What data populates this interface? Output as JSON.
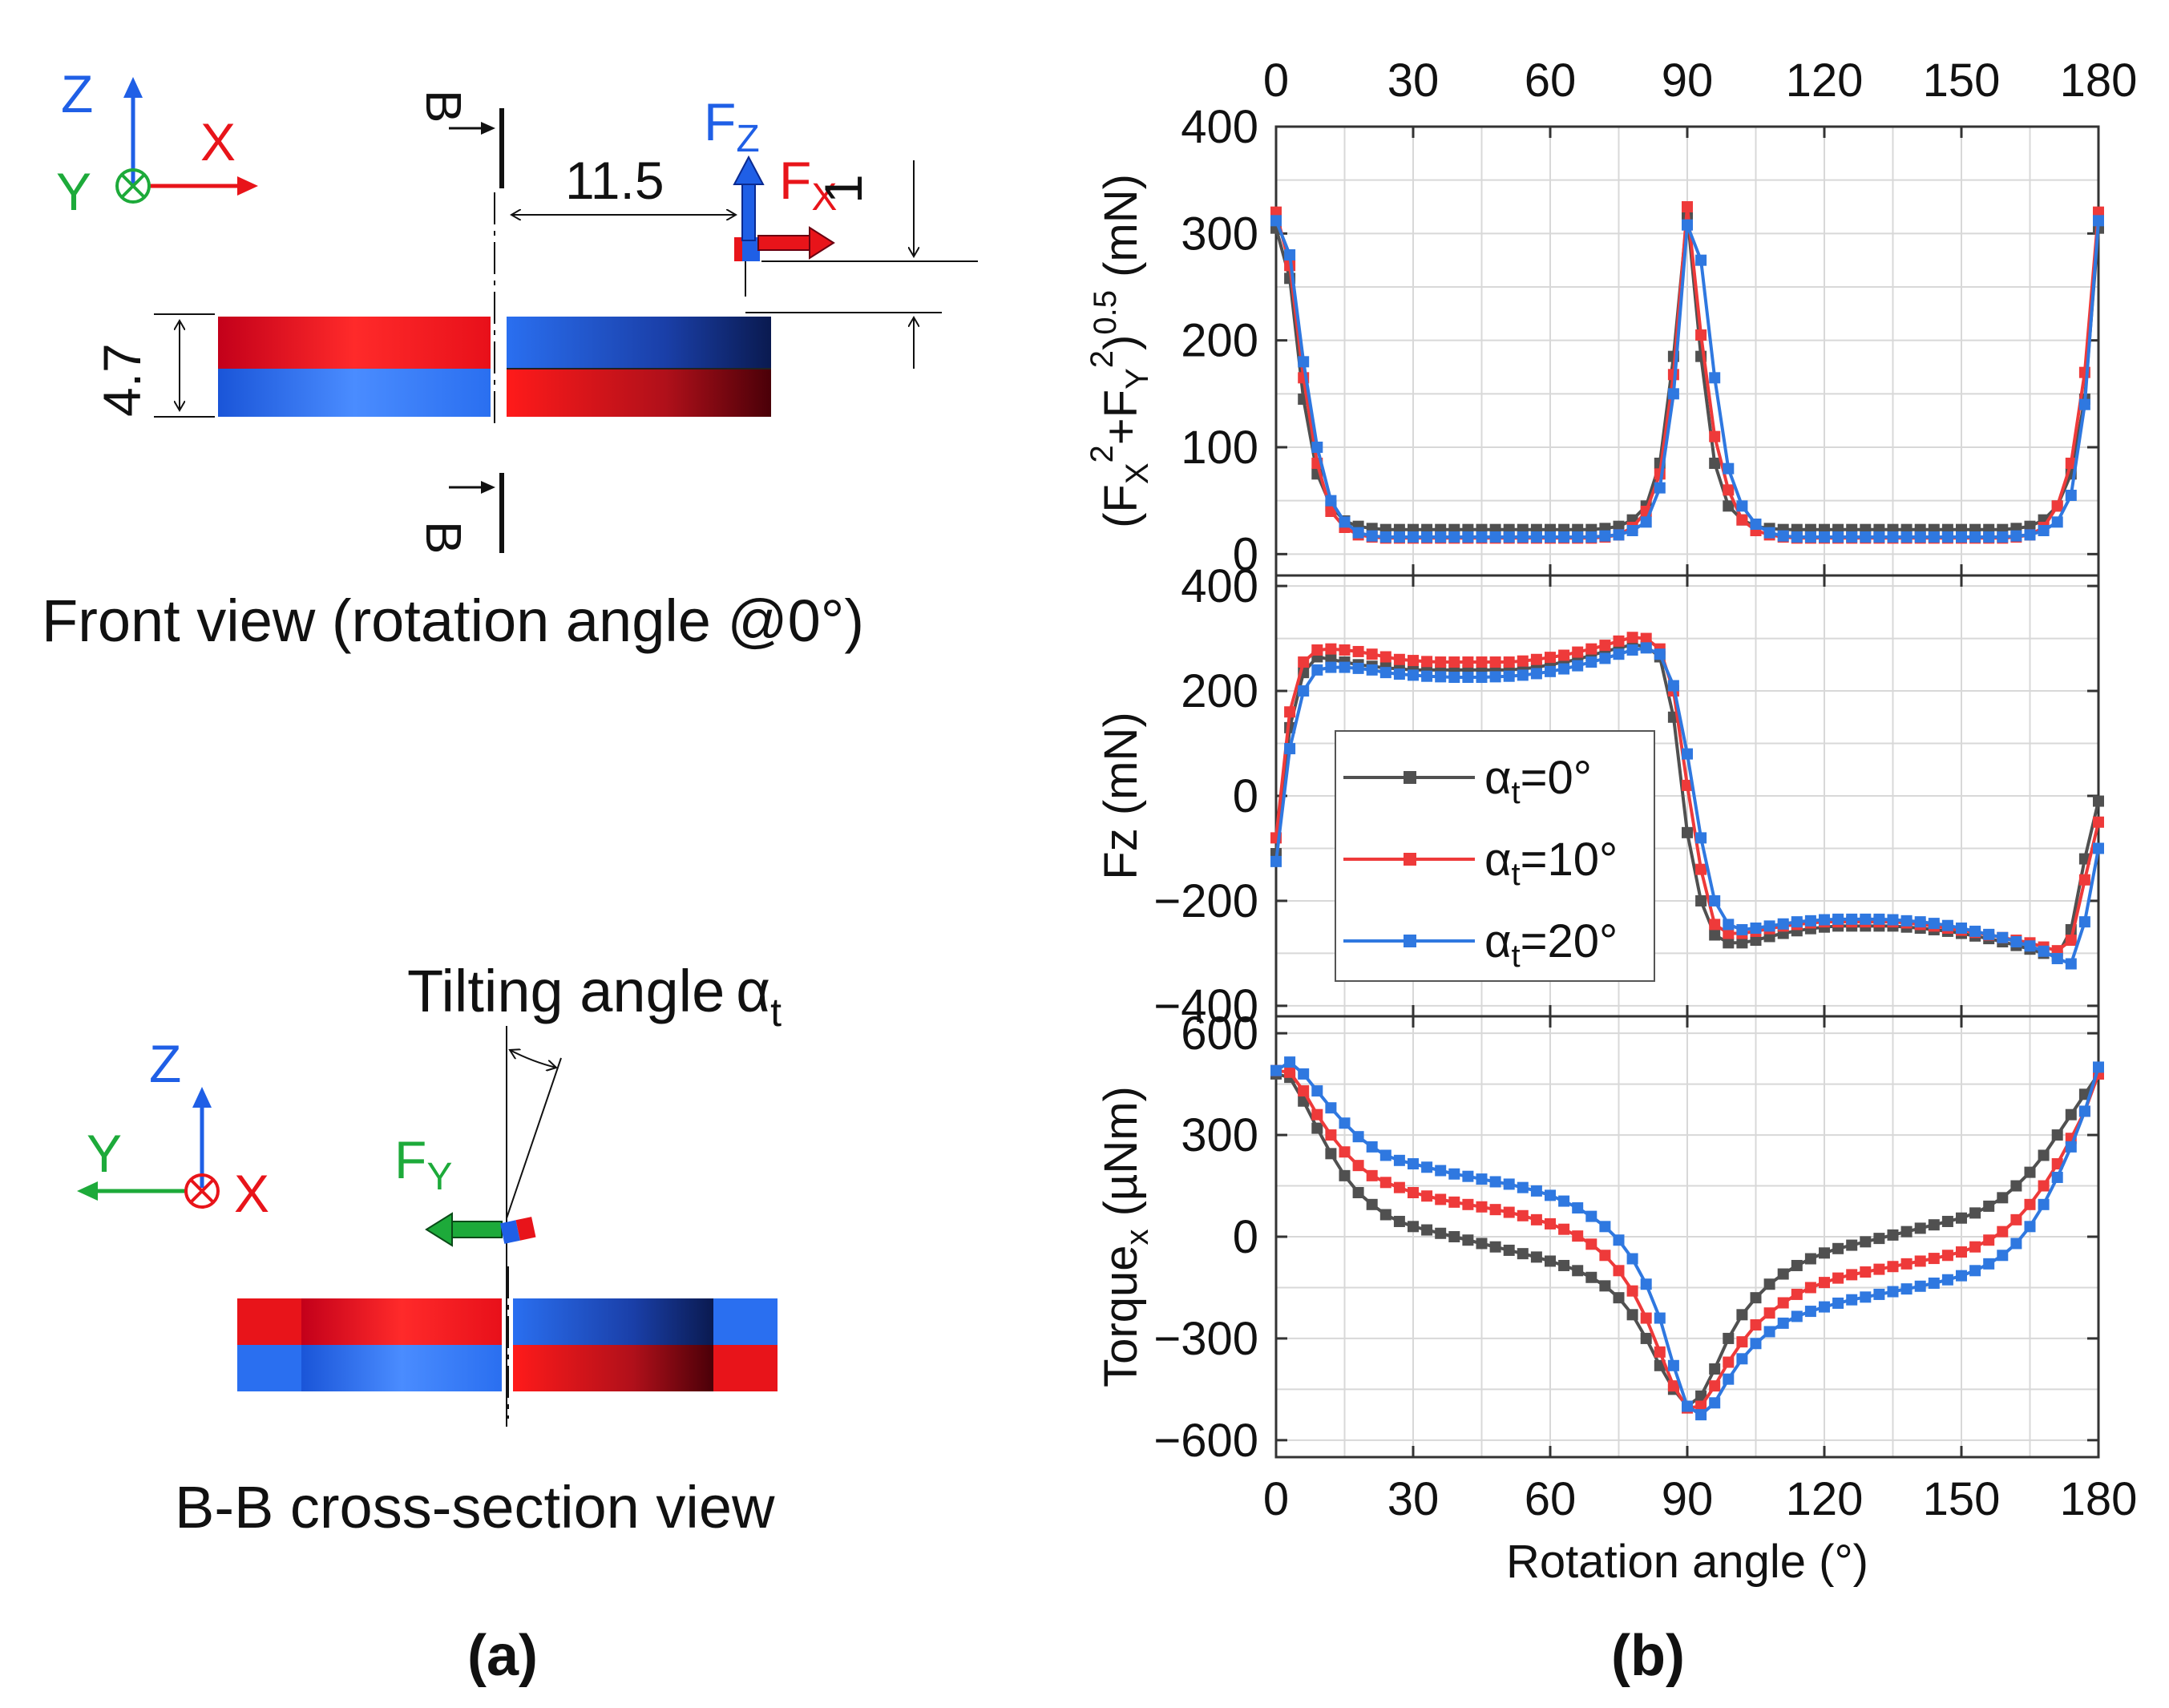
{
  "panel_a": {
    "label": "(a)",
    "front_view": {
      "caption": "Front view (rotation angle @0°)",
      "axes": {
        "z": "Z",
        "x": "X",
        "y": "Y"
      },
      "section_marker": "B",
      "dim_offset": "11.5",
      "dim_height": "4.7",
      "dim_small": "1",
      "force_z": {
        "main": "F",
        "sub": "Z"
      },
      "force_x": {
        "main": "F",
        "sub": "X"
      }
    },
    "cross_section": {
      "caption": "B-B cross-section view",
      "tilt_label": "Tilting angle",
      "tilt_symbol": "α",
      "tilt_sub": "t",
      "axes": {
        "z": "Z",
        "x": "X",
        "y": "Y"
      },
      "force_y": {
        "main": "F",
        "sub": "Y"
      }
    }
  },
  "panel_b": {
    "label": "(b)"
  },
  "colors": {
    "a0": "#505050",
    "a10": "#ee3a3a",
    "a20": "#2f78e0",
    "red": "#e8141a",
    "blue": "#1f5fe6",
    "green": "#1daa3a"
  },
  "chart_data": [
    {
      "type": "line",
      "title": "",
      "xlabel": "Rotation angle (°)",
      "ylabel": "(FX²+FY²)^0.5 (mN)",
      "ylabel_parts": {
        "open": "(F",
        "sx": "X",
        "sup2a": "2",
        "plus": "+F",
        "sy": "Y",
        "sup2b": "2",
        "close": ")",
        "sup05": "0.5",
        "unit": " (mN)"
      },
      "xlim": [
        0,
        180
      ],
      "ylim": [
        -20,
        400
      ],
      "yticks": [
        0,
        100,
        200,
        300,
        400
      ],
      "top_xticks": [
        0,
        30,
        60,
        90,
        120,
        150,
        180
      ],
      "x": [
        0,
        3,
        6,
        9,
        12,
        15,
        18,
        21,
        24,
        27,
        30,
        33,
        36,
        39,
        42,
        45,
        48,
        51,
        54,
        57,
        60,
        63,
        66,
        69,
        72,
        75,
        78,
        81,
        84,
        87,
        90,
        93,
        96,
        99,
        102,
        105,
        108,
        111,
        114,
        117,
        120,
        123,
        126,
        129,
        132,
        135,
        138,
        141,
        144,
        147,
        150,
        153,
        156,
        159,
        162,
        165,
        168,
        171,
        174,
        177,
        180
      ],
      "series": [
        {
          "name": "αt=0°",
          "values": [
            305,
            258,
            145,
            75,
            45,
            31,
            26,
            24,
            23,
            23,
            23,
            23,
            23,
            23,
            23,
            23,
            23,
            23,
            23,
            23,
            23,
            23,
            23,
            23,
            24,
            26,
            32,
            45,
            85,
            185,
            318,
            185,
            85,
            45,
            32,
            26,
            24,
            23,
            23,
            23,
            23,
            23,
            23,
            23,
            23,
            23,
            23,
            23,
            23,
            23,
            23,
            23,
            23,
            23,
            24,
            26,
            32,
            45,
            75,
            145,
            305
          ]
        },
        {
          "name": "αt=10°",
          "values": [
            320,
            270,
            165,
            85,
            40,
            25,
            18,
            16,
            15,
            15,
            15,
            15,
            15,
            15,
            15,
            15,
            15,
            15,
            15,
            15,
            15,
            15,
            15,
            15,
            16,
            18,
            25,
            40,
            75,
            168,
            325,
            205,
            110,
            60,
            32,
            22,
            18,
            16,
            15,
            15,
            15,
            15,
            15,
            15,
            15,
            15,
            15,
            15,
            15,
            15,
            15,
            15,
            15,
            15,
            16,
            18,
            25,
            45,
            85,
            170,
            320
          ]
        },
        {
          "name": "αt=20°",
          "values": [
            312,
            280,
            180,
            100,
            50,
            30,
            20,
            17,
            16,
            16,
            16,
            16,
            16,
            16,
            16,
            16,
            16,
            16,
            16,
            16,
            16,
            16,
            16,
            16,
            17,
            18,
            22,
            30,
            62,
            150,
            308,
            275,
            165,
            80,
            45,
            28,
            20,
            17,
            16,
            16,
            16,
            16,
            16,
            16,
            16,
            16,
            16,
            16,
            16,
            16,
            16,
            16,
            16,
            16,
            17,
            18,
            22,
            30,
            55,
            140,
            312
          ]
        }
      ]
    },
    {
      "type": "line",
      "title": "",
      "xlabel": "Rotation angle (°)",
      "ylabel": "Fz (mN)",
      "xlim": [
        0,
        180
      ],
      "ylim": [
        -420,
        420
      ],
      "yticks": [
        -400,
        -200,
        0,
        200,
        400
      ],
      "x": [
        0,
        3,
        6,
        9,
        12,
        15,
        18,
        21,
        24,
        27,
        30,
        33,
        36,
        39,
        42,
        45,
        48,
        51,
        54,
        57,
        60,
        63,
        66,
        69,
        72,
        75,
        78,
        81,
        84,
        87,
        90,
        93,
        96,
        99,
        102,
        105,
        108,
        111,
        114,
        117,
        120,
        123,
        126,
        129,
        132,
        135,
        138,
        141,
        144,
        147,
        150,
        153,
        156,
        159,
        162,
        165,
        168,
        171,
        174,
        177,
        180
      ],
      "series": [
        {
          "name": "αt=0°",
          "values": [
            -110,
            130,
            235,
            265,
            260,
            255,
            250,
            247,
            244,
            242,
            240,
            240,
            240,
            240,
            240,
            240,
            240,
            240,
            242,
            245,
            250,
            255,
            260,
            268,
            275,
            282,
            288,
            285,
            265,
            150,
            -70,
            -200,
            -265,
            -280,
            -280,
            -275,
            -268,
            -262,
            -257,
            -253,
            -250,
            -248,
            -248,
            -248,
            -248,
            -248,
            -250,
            -252,
            -255,
            -258,
            -262,
            -267,
            -272,
            -278,
            -285,
            -292,
            -300,
            -305,
            -255,
            -120,
            -10
          ]
        },
        {
          "name": "αt=10°",
          "values": [
            -80,
            160,
            255,
            278,
            280,
            278,
            275,
            270,
            265,
            260,
            258,
            256,
            255,
            255,
            255,
            255,
            255,
            255,
            257,
            260,
            264,
            268,
            274,
            280,
            287,
            295,
            302,
            300,
            280,
            200,
            20,
            -140,
            -245,
            -262,
            -262,
            -258,
            -253,
            -248,
            -245,
            -242,
            -240,
            -240,
            -240,
            -240,
            -240,
            -240,
            -242,
            -245,
            -248,
            -252,
            -256,
            -260,
            -265,
            -270,
            -275,
            -280,
            -288,
            -295,
            -275,
            -160,
            -50
          ]
        },
        {
          "name": "αt=20°",
          "values": [
            -125,
            90,
            200,
            240,
            245,
            245,
            243,
            240,
            235,
            232,
            230,
            228,
            227,
            226,
            226,
            226,
            227,
            228,
            230,
            233,
            237,
            242,
            248,
            255,
            262,
            270,
            278,
            282,
            270,
            210,
            80,
            -80,
            -200,
            -245,
            -255,
            -252,
            -248,
            -244,
            -240,
            -238,
            -236,
            -235,
            -235,
            -235,
            -235,
            -236,
            -238,
            -240,
            -243,
            -247,
            -252,
            -258,
            -264,
            -270,
            -278,
            -286,
            -296,
            -310,
            -320,
            -240,
            -100
          ]
        }
      ]
    },
    {
      "type": "line",
      "title": "",
      "xlabel": "Rotation angle (°)",
      "ylabel": "Torquex (µNm)",
      "ylabel_parts": {
        "main": "Torque",
        "sub": "x",
        "unit": " (µNm)"
      },
      "xlim": [
        0,
        180
      ],
      "ylim": [
        -650,
        650
      ],
      "yticks": [
        -600,
        -300,
        0,
        300,
        600
      ],
      "bottom_xticks": [
        0,
        30,
        60,
        90,
        120,
        150,
        180
      ],
      "x": [
        0,
        3,
        6,
        9,
        12,
        15,
        18,
        21,
        24,
        27,
        30,
        33,
        36,
        39,
        42,
        45,
        48,
        51,
        54,
        57,
        60,
        63,
        66,
        69,
        72,
        75,
        78,
        81,
        84,
        87,
        90,
        93,
        96,
        99,
        102,
        105,
        108,
        111,
        114,
        117,
        120,
        123,
        126,
        129,
        132,
        135,
        138,
        141,
        144,
        147,
        150,
        153,
        156,
        159,
        162,
        165,
        168,
        171,
        174,
        177,
        180
      ],
      "series": [
        {
          "name": "αt=0°",
          "values": [
            480,
            470,
            400,
            320,
            245,
            180,
            130,
            95,
            65,
            45,
            30,
            20,
            10,
            0,
            -10,
            -20,
            -30,
            -40,
            -50,
            -60,
            -72,
            -85,
            -100,
            -120,
            -145,
            -180,
            -230,
            -300,
            -380,
            -450,
            -500,
            -470,
            -390,
            -300,
            -230,
            -180,
            -140,
            -110,
            -85,
            -65,
            -48,
            -35,
            -25,
            -15,
            -5,
            5,
            15,
            25,
            35,
            45,
            55,
            70,
            90,
            115,
            150,
            190,
            240,
            300,
            360,
            420,
            480
          ]
        },
        {
          "name": "αt=10°",
          "values": [
            490,
            485,
            430,
            360,
            300,
            250,
            210,
            180,
            160,
            145,
            130,
            120,
            110,
            102,
            95,
            88,
            80,
            72,
            62,
            50,
            38,
            22,
            2,
            -22,
            -55,
            -100,
            -160,
            -240,
            -340,
            -440,
            -505,
            -500,
            -440,
            -370,
            -310,
            -260,
            -225,
            -195,
            -170,
            -150,
            -135,
            -122,
            -112,
            -104,
            -96,
            -88,
            -80,
            -72,
            -64,
            -55,
            -45,
            -30,
            -10,
            15,
            50,
            95,
            150,
            215,
            290,
            370,
            480
          ]
        },
        {
          "name": "αt=20°",
          "values": [
            490,
            515,
            480,
            430,
            380,
            335,
            295,
            265,
            240,
            225,
            215,
            205,
            195,
            185,
            178,
            170,
            162,
            155,
            145,
            135,
            122,
            105,
            85,
            60,
            30,
            -10,
            -65,
            -140,
            -240,
            -380,
            -500,
            -525,
            -490,
            -420,
            -360,
            -315,
            -280,
            -255,
            -235,
            -220,
            -207,
            -196,
            -186,
            -178,
            -170,
            -162,
            -154,
            -146,
            -137,
            -127,
            -115,
            -100,
            -80,
            -55,
            -20,
            30,
            95,
            175,
            265,
            370,
            500
          ]
        }
      ]
    }
  ]
}
